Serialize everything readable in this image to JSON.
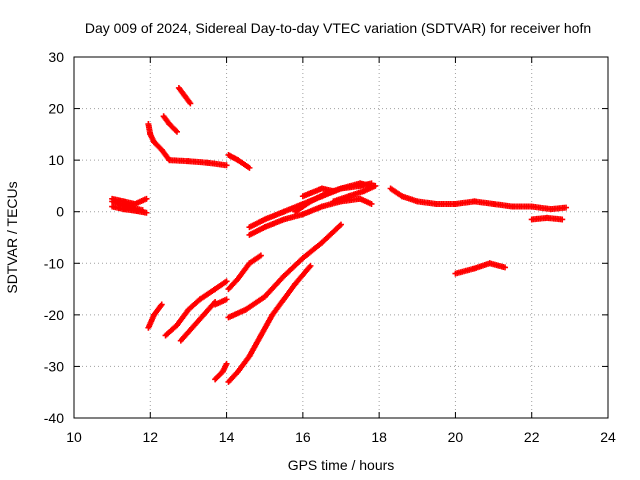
{
  "chart_data": {
    "type": "scatter",
    "title": "Day 009 of 2024, Sidereal Day-to-day VTEC variation (SDTVAR) for receiver hofn",
    "xlabel": "GPS time / hours",
    "ylabel": "SDTVAR / TECUs",
    "xlim": [
      10,
      24
    ],
    "ylim": [
      -40,
      30
    ],
    "x_ticks": [
      10,
      12,
      14,
      16,
      18,
      20,
      22,
      24
    ],
    "x_tick_labels": [
      "10",
      "12",
      "14",
      "16",
      "18",
      "20",
      "22",
      "24"
    ],
    "y_ticks": [
      -40,
      -30,
      -20,
      -10,
      0,
      10,
      20,
      30
    ],
    "y_tick_labels": [
      "-40",
      "-30",
      "-20",
      "-10",
      "0",
      "10",
      "20",
      "30"
    ],
    "grid": true,
    "marker": "plus",
    "color": "#ff0000",
    "series": [
      {
        "name": "arc-1",
        "points": [
          [
            11.0,
            2.5
          ],
          [
            11.3,
            2.0
          ],
          [
            11.6,
            1.5
          ],
          [
            11.9,
            2.5
          ]
        ]
      },
      {
        "name": "arc-2",
        "points": [
          [
            11.0,
            1.0
          ],
          [
            11.3,
            0.5
          ],
          [
            11.6,
            0.2
          ],
          [
            11.9,
            -0.2
          ]
        ]
      },
      {
        "name": "arc-3",
        "points": [
          [
            11.0,
            2.0
          ],
          [
            11.4,
            1.0
          ],
          [
            11.8,
            0.3
          ]
        ]
      },
      {
        "name": "arc-4",
        "points": [
          [
            11.95,
            17.0
          ],
          [
            12.0,
            15.0
          ],
          [
            12.1,
            13.5
          ],
          [
            12.3,
            12.0
          ],
          [
            12.5,
            10.0
          ],
          [
            13.0,
            9.8
          ],
          [
            13.5,
            9.5
          ],
          [
            14.0,
            9.0
          ]
        ]
      },
      {
        "name": "arc-5",
        "points": [
          [
            12.35,
            18.5
          ],
          [
            12.5,
            17.0
          ],
          [
            12.7,
            15.5
          ]
        ]
      },
      {
        "name": "arc-6",
        "points": [
          [
            12.75,
            24.0
          ],
          [
            12.9,
            22.5
          ],
          [
            13.05,
            21.0
          ]
        ]
      },
      {
        "name": "arc-7",
        "points": [
          [
            14.05,
            11.0
          ],
          [
            14.3,
            10.0
          ],
          [
            14.6,
            8.5
          ]
        ]
      },
      {
        "name": "arc-8",
        "points": [
          [
            11.95,
            -22.5
          ],
          [
            12.1,
            -20.0
          ],
          [
            12.3,
            -18.0
          ]
        ]
      },
      {
        "name": "arc-9",
        "points": [
          [
            12.4,
            -24.0
          ],
          [
            12.7,
            -22.0
          ],
          [
            13.0,
            -19.0
          ],
          [
            13.3,
            -17.0
          ],
          [
            13.7,
            -15.0
          ],
          [
            14.0,
            -13.5
          ]
        ]
      },
      {
        "name": "arc-10",
        "points": [
          [
            12.8,
            -25.0
          ],
          [
            13.1,
            -22.5
          ],
          [
            13.4,
            -20.0
          ],
          [
            13.7,
            -17.5
          ]
        ]
      },
      {
        "name": "arc-11",
        "points": [
          [
            13.7,
            -18.0
          ],
          [
            14.0,
            -17.0
          ]
        ]
      },
      {
        "name": "arc-12",
        "points": [
          [
            13.7,
            -32.5
          ],
          [
            13.9,
            -31.0
          ],
          [
            14.0,
            -29.5
          ]
        ]
      },
      {
        "name": "arc-13",
        "points": [
          [
            14.05,
            -15.0
          ],
          [
            14.3,
            -13.0
          ],
          [
            14.6,
            -10.0
          ],
          [
            14.9,
            -8.5
          ]
        ]
      },
      {
        "name": "arc-14",
        "points": [
          [
            14.05,
            -20.5
          ],
          [
            14.5,
            -19.0
          ],
          [
            15.0,
            -16.5
          ],
          [
            15.5,
            -12.5
          ],
          [
            16.0,
            -9.0
          ],
          [
            16.5,
            -6.0
          ],
          [
            17.0,
            -2.5
          ]
        ]
      },
      {
        "name": "arc-15",
        "points": [
          [
            14.05,
            -33.0
          ],
          [
            14.3,
            -31.0
          ],
          [
            14.6,
            -28.0
          ],
          [
            14.9,
            -24.0
          ],
          [
            15.2,
            -20.0
          ],
          [
            15.5,
            -17.0
          ],
          [
            15.8,
            -14.0
          ],
          [
            16.2,
            -10.5
          ]
        ]
      },
      {
        "name": "arc-16",
        "points": [
          [
            14.6,
            -3.0
          ],
          [
            15.0,
            -1.5
          ],
          [
            15.5,
            0.0
          ],
          [
            16.0,
            1.5
          ],
          [
            16.5,
            3.0
          ],
          [
            17.0,
            4.5
          ],
          [
            17.5,
            5.5
          ],
          [
            17.8,
            5.0
          ]
        ]
      },
      {
        "name": "arc-17",
        "points": [
          [
            14.6,
            -4.5
          ],
          [
            15.0,
            -3.0
          ],
          [
            15.5,
            -1.5
          ],
          [
            16.0,
            -0.5
          ],
          [
            16.5,
            1.0
          ],
          [
            17.0,
            2.0
          ],
          [
            17.5,
            2.5
          ],
          [
            17.8,
            1.5
          ]
        ]
      },
      {
        "name": "arc-18",
        "points": [
          [
            15.8,
            0.0
          ],
          [
            16.2,
            2.0
          ],
          [
            16.6,
            3.5
          ],
          [
            17.0,
            4.5
          ],
          [
            17.5,
            5.0
          ],
          [
            17.8,
            5.5
          ]
        ]
      },
      {
        "name": "arc-19",
        "points": [
          [
            16.0,
            3.0
          ],
          [
            16.5,
            4.5
          ],
          [
            16.8,
            4.0
          ]
        ]
      },
      {
        "name": "arc-20",
        "points": [
          [
            16.8,
            2.0
          ],
          [
            17.2,
            3.0
          ],
          [
            17.6,
            4.0
          ],
          [
            17.9,
            5.0
          ]
        ]
      },
      {
        "name": "arc-21",
        "points": [
          [
            18.3,
            4.5
          ],
          [
            18.6,
            3.0
          ],
          [
            19.0,
            2.0
          ],
          [
            19.5,
            1.5
          ],
          [
            20.0,
            1.5
          ],
          [
            20.5,
            2.0
          ],
          [
            21.0,
            1.5
          ],
          [
            21.5,
            1.0
          ],
          [
            22.0,
            1.0
          ],
          [
            22.5,
            0.5
          ],
          [
            22.9,
            0.8
          ]
        ]
      },
      {
        "name": "arc-22",
        "points": [
          [
            22.0,
            -1.5
          ],
          [
            22.4,
            -1.2
          ],
          [
            22.8,
            -1.5
          ]
        ]
      },
      {
        "name": "arc-23",
        "points": [
          [
            20.0,
            -12.0
          ],
          [
            20.5,
            -11.0
          ],
          [
            20.9,
            -10.0
          ],
          [
            21.3,
            -10.8
          ]
        ]
      }
    ]
  }
}
